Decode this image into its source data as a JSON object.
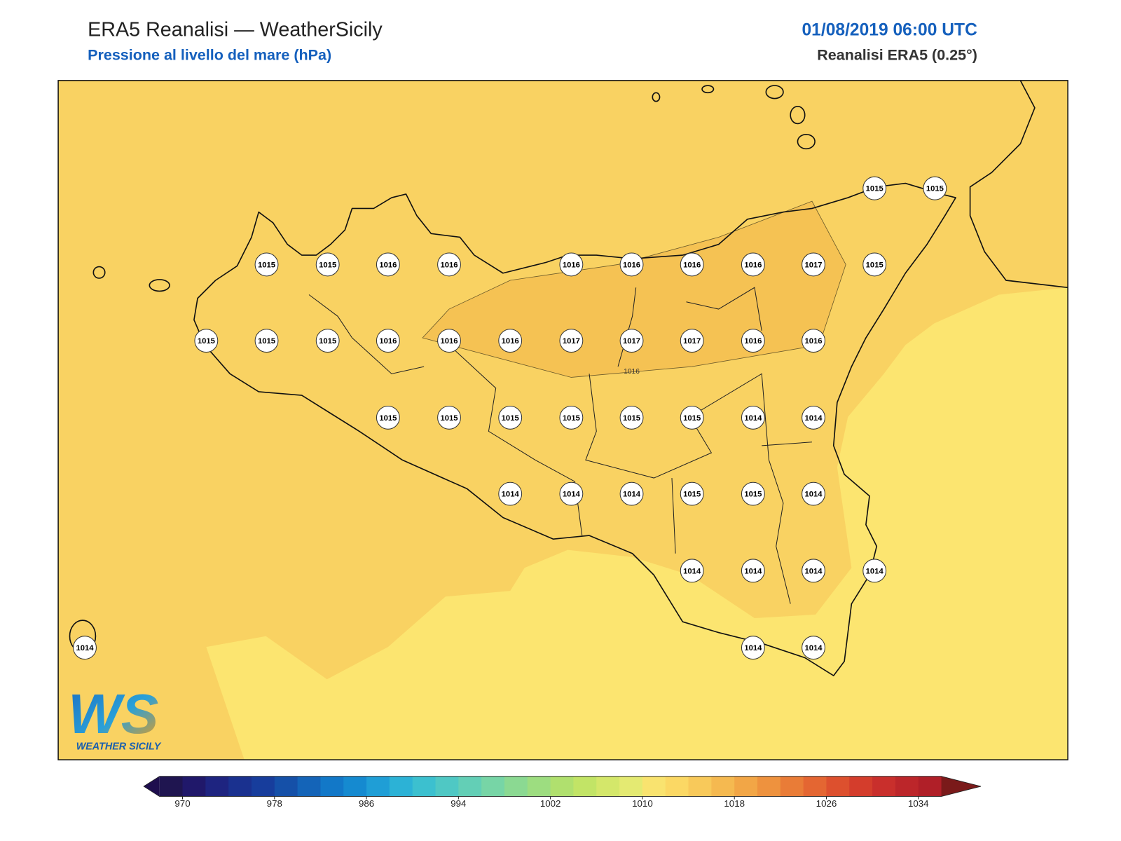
{
  "header": {
    "title": "ERA5 Reanalisi — WeatherSicily",
    "subtitle": "Pressione al livello del mare (hPa)",
    "datetime": "01/08/2019 06:00 UTC",
    "model": "Reanalisi ERA5 (0.25°)"
  },
  "stations": [
    1015,
    1015,
    1015,
    1015,
    1016,
    1016,
    1016,
    1016,
    1016,
    1016,
    1017,
    1015,
    1015,
    1015,
    1015,
    1016,
    1016,
    1016,
    1017,
    1017,
    1017,
    1016,
    1016,
    1015,
    1015,
    1015,
    1015,
    1015,
    1015,
    1014,
    1014,
    1014,
    1014,
    1014,
    1015,
    1015,
    1014,
    1014,
    1014,
    1014,
    1014,
    1014,
    1014,
    1014
  ],
  "contour_label": 1016,
  "fields": {
    "band_1014": "#fce570",
    "band_1016": "#f9d262",
    "band_1018": "#f5c253"
  },
  "colorbar": {
    "range": [
      968,
      1036
    ],
    "ticks": [
      970,
      978,
      986,
      994,
      1002,
      1010,
      1018,
      1026,
      1034
    ],
    "under": "#1e0e4e",
    "over": "#7a1a1a",
    "colors": [
      "#1f1550",
      "#20186a",
      "#1e2480",
      "#1a318f",
      "#173d9c",
      "#1550a8",
      "#1464b8",
      "#1278c8",
      "#158ad0",
      "#1f9ed6",
      "#2cb2d6",
      "#3cc0cf",
      "#4fc8c4",
      "#63cfb6",
      "#77d5a6",
      "#8bd992",
      "#9ddd80",
      "#b0e06e",
      "#c2e466",
      "#d4e76a",
      "#e4ea72",
      "#f9e36f",
      "#fbd864",
      "#f8c95a",
      "#f5b950",
      "#f2a646",
      "#ee923e",
      "#e97c37",
      "#e46632",
      "#dd502e",
      "#d43d2c",
      "#c92f2c",
      "#bc262a",
      "#b01f28"
    ]
  },
  "logo": {
    "mark": "WS",
    "name": "WEATHER SICILY"
  }
}
